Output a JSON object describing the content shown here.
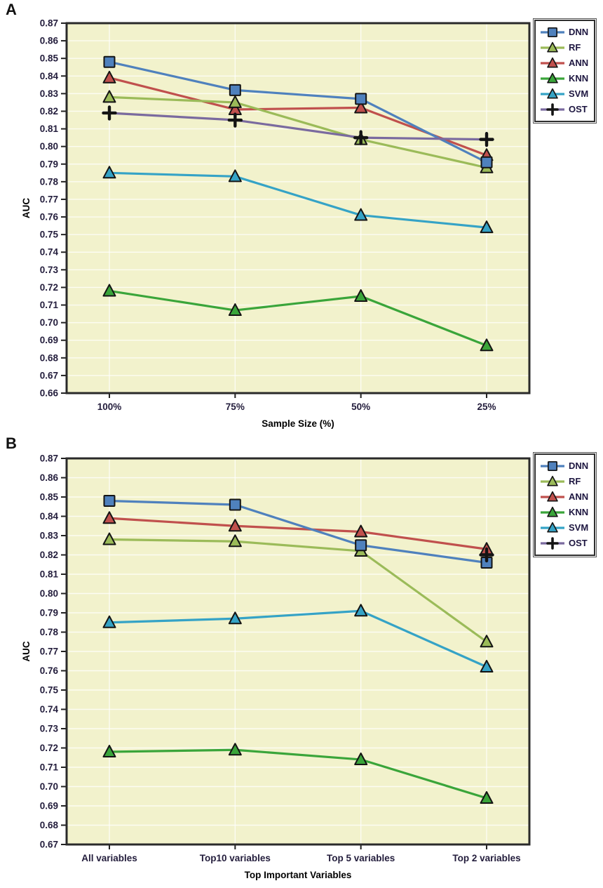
{
  "colors": {
    "page_bg": "#ffffff",
    "plot_bg": "#f2f2cc",
    "frame": "#2a2a2a",
    "grid": "#ffffff",
    "tick_text": "#231d3c",
    "axis_title_text": "#000000",
    "dnn": "#4f81bd",
    "rf": "#9bbb59",
    "ann": "#c0504d",
    "knn": "#3aa53a",
    "svm": "#35a3c6",
    "ost_line": "#7a6a9f",
    "ost_marker": "#141414"
  },
  "legend": {
    "items": [
      {
        "label": "DNN",
        "marker": "square",
        "color": "#4f81bd"
      },
      {
        "label": "RF",
        "marker": "triangle",
        "color": "#9bbb59"
      },
      {
        "label": "ANN",
        "marker": "triangle",
        "color": "#c0504d"
      },
      {
        "label": "KNN",
        "marker": "triangle",
        "color": "#3aa53a"
      },
      {
        "label": "SVM",
        "marker": "triangle",
        "color": "#35a3c6"
      },
      {
        "label": "OST",
        "marker": "plus",
        "color": "#7a6a9f",
        "marker_color": "#141414"
      }
    ]
  },
  "chart_data": [
    {
      "id": "A",
      "panel_label": "A",
      "type": "line",
      "title": "",
      "xlabel": "Sample Size (%)",
      "ylabel": "AUC",
      "ylim": [
        0.66,
        0.87
      ],
      "ytick_step": 0.01,
      "grid": true,
      "legend_position": "outside-top-right",
      "categories": [
        "100%",
        "75%",
        "50%",
        "25%"
      ],
      "series": [
        {
          "name": "DNN",
          "marker": "square",
          "color": "#4f81bd",
          "values": [
            0.848,
            0.832,
            0.827,
            0.791
          ]
        },
        {
          "name": "RF",
          "marker": "triangle",
          "color": "#9bbb59",
          "values": [
            0.828,
            0.825,
            0.804,
            0.788
          ]
        },
        {
          "name": "ANN",
          "marker": "triangle",
          "color": "#c0504d",
          "values": [
            0.839,
            0.821,
            0.822,
            0.795
          ]
        },
        {
          "name": "KNN",
          "marker": "triangle",
          "color": "#3aa53a",
          "values": [
            0.718,
            0.707,
            0.715,
            0.687
          ]
        },
        {
          "name": "SVM",
          "marker": "triangle",
          "color": "#35a3c6",
          "values": [
            0.785,
            0.783,
            0.761,
            0.754
          ]
        },
        {
          "name": "OST",
          "marker": "plus",
          "color": "#7a6a9f",
          "marker_color": "#141414",
          "values": [
            0.819,
            0.815,
            0.805,
            0.804
          ]
        }
      ]
    },
    {
      "id": "B",
      "panel_label": "B",
      "type": "line",
      "title": "",
      "xlabel": "Top Important Variables",
      "ylabel": "AUC",
      "ylim": [
        0.67,
        0.87
      ],
      "ytick_step": 0.01,
      "grid": true,
      "legend_position": "outside-top-right",
      "categories": [
        "All variables",
        "Top10 variables",
        "Top 5 variables",
        "Top 2 variables"
      ],
      "series": [
        {
          "name": "DNN",
          "marker": "square",
          "color": "#4f81bd",
          "values": [
            0.848,
            0.846,
            0.825,
            0.816
          ]
        },
        {
          "name": "RF",
          "marker": "triangle",
          "color": "#9bbb59",
          "values": [
            0.828,
            0.827,
            0.822,
            0.775
          ]
        },
        {
          "name": "ANN",
          "marker": "triangle",
          "color": "#c0504d",
          "values": [
            0.839,
            0.835,
            0.832,
            0.823
          ]
        },
        {
          "name": "KNN",
          "marker": "triangle",
          "color": "#3aa53a",
          "values": [
            0.718,
            0.719,
            0.714,
            0.694
          ]
        },
        {
          "name": "SVM",
          "marker": "triangle",
          "color": "#35a3c6",
          "values": [
            0.785,
            0.787,
            0.791,
            0.762
          ]
        },
        {
          "name": "OST",
          "marker": "plus",
          "color": "#7a6a9f",
          "marker_color": "#141414",
          "values": [
            null,
            null,
            null,
            0.82
          ]
        }
      ]
    }
  ]
}
